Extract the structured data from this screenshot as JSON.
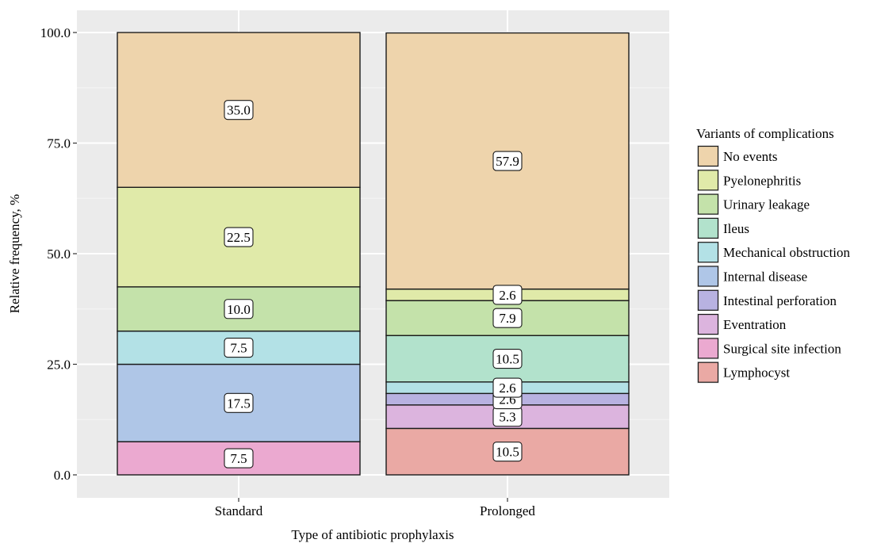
{
  "chart_data": {
    "type": "bar",
    "stacked": true,
    "title": "",
    "xlabel": "Type of antibiotic prophylaxis",
    "ylabel": "Relative frequency, %",
    "ylim": [
      0,
      100
    ],
    "yticks": [
      0,
      25,
      50,
      75,
      100
    ],
    "ytick_labels": [
      "0.0",
      "25.0",
      "50.0",
      "75.0",
      "100.0"
    ],
    "grid": true,
    "legend_position": "right",
    "legend_title": "Variants of complications",
    "categories": [
      "Standard",
      "Prolonged"
    ],
    "series": [
      {
        "name": "Lymphocyst",
        "color": "#EAA9A4",
        "values": [
          0,
          10.5
        ],
        "labels": [
          "",
          "10.5"
        ]
      },
      {
        "name": "Surgical site infection",
        "color": "#EBA9D0",
        "values": [
          7.5,
          0
        ],
        "labels": [
          "7.5",
          ""
        ]
      },
      {
        "name": "Eventration",
        "color": "#DCB4DE",
        "values": [
          0,
          5.3
        ],
        "labels": [
          "",
          "5.3"
        ]
      },
      {
        "name": "Intestinal perforation",
        "color": "#B8B2E1",
        "values": [
          0,
          2.6
        ],
        "labels": [
          "",
          "2.6"
        ]
      },
      {
        "name": "Internal disease",
        "color": "#AFC6E7",
        "values": [
          17.5,
          0
        ],
        "labels": [
          "17.5",
          ""
        ]
      },
      {
        "name": "Mechanical obstruction",
        "color": "#B3E1E6",
        "values": [
          7.5,
          2.6
        ],
        "labels": [
          "7.5",
          "2.6"
        ]
      },
      {
        "name": "Ileus",
        "color": "#B2E2CC",
        "values": [
          0,
          10.5
        ],
        "labels": [
          "",
          "10.5"
        ]
      },
      {
        "name": "Urinary leakage",
        "color": "#C4E2AA",
        "values": [
          10.0,
          7.9
        ],
        "labels": [
          "10.0",
          "7.9"
        ]
      },
      {
        "name": "Pyelonephritis",
        "color": "#E0EAA9",
        "values": [
          22.5,
          2.6
        ],
        "labels": [
          "22.5",
          "2.6"
        ]
      },
      {
        "name": "No events",
        "color": "#EED4AC",
        "values": [
          35.0,
          57.9
        ],
        "labels": [
          "35.0",
          "57.9"
        ]
      }
    ],
    "legend_order": [
      "No events",
      "Pyelonephritis",
      "Urinary leakage",
      "Ileus",
      "Mechanical obstruction",
      "Internal disease",
      "Intestinal perforation",
      "Eventration",
      "Surgical site infection",
      "Lymphocyst"
    ]
  }
}
